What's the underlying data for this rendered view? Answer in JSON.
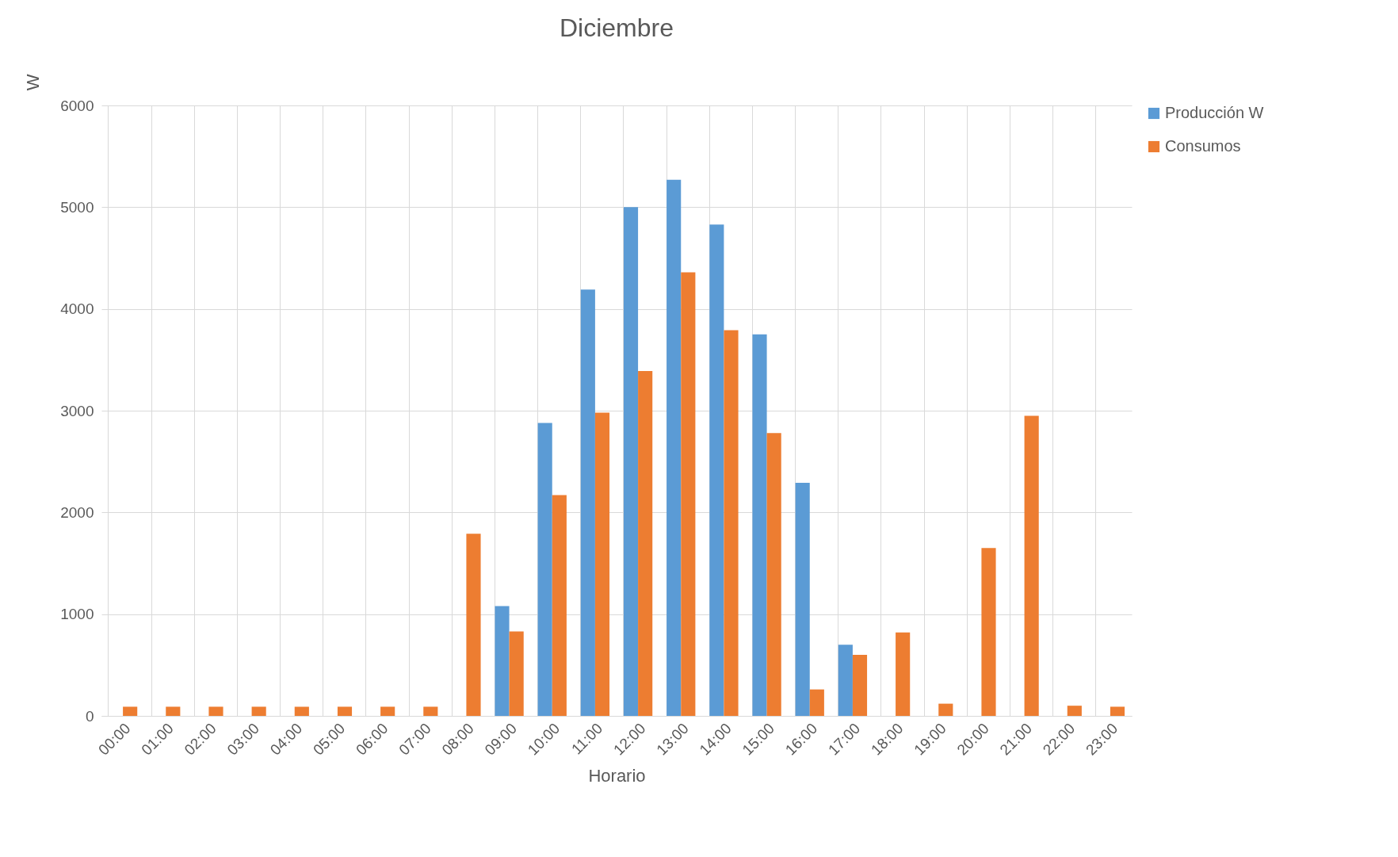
{
  "chart_data": {
    "type": "bar",
    "title": "Diciembre",
    "xlabel": "Horario",
    "ylabel": "W",
    "categories": [
      "00:00",
      "01:00",
      "02:00",
      "03:00",
      "04:00",
      "05:00",
      "06:00",
      "07:00",
      "08:00",
      "09:00",
      "10:00",
      "11:00",
      "12:00",
      "13:00",
      "14:00",
      "15:00",
      "16:00",
      "17:00",
      "18:00",
      "19:00",
      "20:00",
      "21:00",
      "22:00",
      "23:00"
    ],
    "series": [
      {
        "name": "Producción W",
        "color": "#5b9bd5",
        "values": [
          0,
          0,
          0,
          0,
          0,
          0,
          0,
          0,
          0,
          1080,
          2880,
          4190,
          5000,
          5270,
          4830,
          3750,
          2290,
          700,
          0,
          0,
          0,
          0,
          0,
          0
        ]
      },
      {
        "name": "Consumos",
        "color": "#ed7d31",
        "values": [
          90,
          90,
          90,
          90,
          90,
          90,
          90,
          90,
          1790,
          830,
          2170,
          2980,
          3390,
          4360,
          3790,
          2780,
          260,
          600,
          820,
          120,
          1650,
          2950,
          100,
          90
        ]
      }
    ],
    "ylim": [
      0,
      6000
    ],
    "yticks": [
      0,
      1000,
      2000,
      3000,
      4000,
      5000,
      6000
    ],
    "grid": true,
    "legend": "right"
  }
}
